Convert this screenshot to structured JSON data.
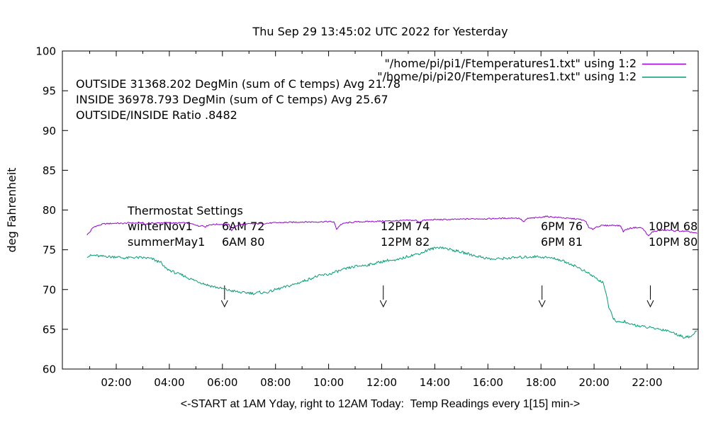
{
  "chart_data": {
    "type": "line",
    "title": "Thu Sep 29 13:45:02 UTC 2022 for Yesterday",
    "xlabel": "<-START at 1AM Yday, right to 12AM Today:  Temp Readings every 1[15] min->",
    "ylabel": "deg Fahrenheit",
    "grid": false,
    "legend_position": "top-right-inside",
    "x_axis": {
      "range_hours": [
        0,
        23.92
      ],
      "tick_hours": [
        2,
        4,
        6,
        8,
        10,
        12,
        14,
        16,
        18,
        20,
        22
      ],
      "tick_labels": [
        "02:00",
        "04:00",
        "06:00",
        "08:00",
        "10:00",
        "12:00",
        "14:00",
        "16:00",
        "18:00",
        "20:00",
        "22:00"
      ],
      "minor_tick_hours": [
        1,
        3,
        5,
        7,
        9,
        11,
        13,
        15,
        17,
        19,
        21,
        23
      ]
    },
    "y_axis": {
      "range": [
        60,
        100
      ],
      "ticks": [
        60,
        65,
        70,
        75,
        80,
        85,
        90,
        95,
        100
      ]
    },
    "arrows_at_hours": [
      6.08,
      12.06,
      18.04,
      22.12
    ],
    "series": [
      {
        "name": "\"/home/pi/pi1/Ftemperatures1.txt\" using 1:2",
        "color": "#9400d3",
        "points_t_hours_degF": [
          [
            0.9,
            76.9
          ],
          [
            1.0,
            77.2
          ],
          [
            1.1,
            77.7
          ],
          [
            1.2,
            77.95
          ],
          [
            1.35,
            78.05
          ],
          [
            1.5,
            78.25
          ],
          [
            1.75,
            78.3
          ],
          [
            2.0,
            78.35
          ],
          [
            2.25,
            78.3
          ],
          [
            2.5,
            78.4
          ],
          [
            2.75,
            78.35
          ],
          [
            3.0,
            78.4
          ],
          [
            3.1,
            78.15
          ],
          [
            3.2,
            78.35
          ],
          [
            3.5,
            78.35
          ],
          [
            3.75,
            78.4
          ],
          [
            4.0,
            78.4
          ],
          [
            4.25,
            78.35
          ],
          [
            4.5,
            78.4
          ],
          [
            4.75,
            78.3
          ],
          [
            5.0,
            78.15
          ],
          [
            5.1,
            77.95
          ],
          [
            5.2,
            78.1
          ],
          [
            5.35,
            77.9
          ],
          [
            5.5,
            78.15
          ],
          [
            5.75,
            78.2
          ],
          [
            6.0,
            78.2
          ],
          [
            6.25,
            78.15
          ],
          [
            6.35,
            77.4
          ],
          [
            6.45,
            77.9
          ],
          [
            6.6,
            78.1
          ],
          [
            6.75,
            78.2
          ],
          [
            7.0,
            78.25
          ],
          [
            7.5,
            78.3
          ],
          [
            8.0,
            78.4
          ],
          [
            8.5,
            78.45
          ],
          [
            9.0,
            78.5
          ],
          [
            9.5,
            78.5
          ],
          [
            10.0,
            78.55
          ],
          [
            10.2,
            78.5
          ],
          [
            10.3,
            77.6
          ],
          [
            10.45,
            78.15
          ],
          [
            10.6,
            78.35
          ],
          [
            11.0,
            78.5
          ],
          [
            11.5,
            78.55
          ],
          [
            12.0,
            78.6
          ],
          [
            12.5,
            78.65
          ],
          [
            13.0,
            78.7
          ],
          [
            13.3,
            78.7
          ],
          [
            13.4,
            78.45
          ],
          [
            13.55,
            78.7
          ],
          [
            14.0,
            78.8
          ],
          [
            14.5,
            78.8
          ],
          [
            15.0,
            78.85
          ],
          [
            15.5,
            78.9
          ],
          [
            16.0,
            78.9
          ],
          [
            16.5,
            78.95
          ],
          [
            17.0,
            79.0
          ],
          [
            17.2,
            78.95
          ],
          [
            17.35,
            78.5
          ],
          [
            17.5,
            78.95
          ],
          [
            17.75,
            79.0
          ],
          [
            18.0,
            79.1
          ],
          [
            18.2,
            79.2
          ],
          [
            18.5,
            79.1
          ],
          [
            18.75,
            79.05
          ],
          [
            19.0,
            78.95
          ],
          [
            19.25,
            78.9
          ],
          [
            19.5,
            78.8
          ],
          [
            19.7,
            78.55
          ],
          [
            19.8,
            77.75
          ],
          [
            19.95,
            77.6
          ],
          [
            20.1,
            77.9
          ],
          [
            20.3,
            78.05
          ],
          [
            20.5,
            78.05
          ],
          [
            20.75,
            78.1
          ],
          [
            21.0,
            78.0
          ],
          [
            21.1,
            77.3
          ],
          [
            21.2,
            77.55
          ],
          [
            21.4,
            77.75
          ],
          [
            21.6,
            77.8
          ],
          [
            21.8,
            77.75
          ],
          [
            21.95,
            77.2
          ],
          [
            22.05,
            76.7
          ],
          [
            22.2,
            77.25
          ],
          [
            22.4,
            77.4
          ],
          [
            22.6,
            77.45
          ],
          [
            22.8,
            77.45
          ],
          [
            23.0,
            77.4
          ],
          [
            23.25,
            77.35
          ],
          [
            23.5,
            77.3
          ],
          [
            23.7,
            77.2
          ],
          [
            23.88,
            77.05
          ]
        ]
      },
      {
        "name": "\"/home/pi/pi20/Ftemperatures1.txt\" using 1:2",
        "color": "#009e73",
        "points_t_hours_degF": [
          [
            0.9,
            74.2
          ],
          [
            1.2,
            74.3
          ],
          [
            1.4,
            74.15
          ],
          [
            1.6,
            74.2
          ],
          [
            1.8,
            74.1
          ],
          [
            2.0,
            74.15
          ],
          [
            2.2,
            74.0
          ],
          [
            2.4,
            73.95
          ],
          [
            2.6,
            74.05
          ],
          [
            2.8,
            74.0
          ],
          [
            3.0,
            74.0
          ],
          [
            3.2,
            73.95
          ],
          [
            3.4,
            73.8
          ],
          [
            3.55,
            73.5
          ],
          [
            3.65,
            73.6
          ],
          [
            3.75,
            73.0
          ],
          [
            3.9,
            72.6
          ],
          [
            4.1,
            72.3
          ],
          [
            4.3,
            72.0
          ],
          [
            4.5,
            71.8
          ],
          [
            4.75,
            71.4
          ],
          [
            5.0,
            71.1
          ],
          [
            5.25,
            70.8
          ],
          [
            5.5,
            70.5
          ],
          [
            5.75,
            70.3
          ],
          [
            6.0,
            70.1
          ],
          [
            6.25,
            69.9
          ],
          [
            6.5,
            69.75
          ],
          [
            6.75,
            69.6
          ],
          [
            7.0,
            69.6
          ],
          [
            7.2,
            69.5
          ],
          [
            7.4,
            69.65
          ],
          [
            7.6,
            69.6
          ],
          [
            7.8,
            69.75
          ],
          [
            8.0,
            70.0
          ],
          [
            8.25,
            70.2
          ],
          [
            8.5,
            70.45
          ],
          [
            8.75,
            70.7
          ],
          [
            9.0,
            71.0
          ],
          [
            9.25,
            71.3
          ],
          [
            9.5,
            71.6
          ],
          [
            9.75,
            71.8
          ],
          [
            10.0,
            71.9
          ],
          [
            10.25,
            72.2
          ],
          [
            10.5,
            72.45
          ],
          [
            10.75,
            72.7
          ],
          [
            11.0,
            72.9
          ],
          [
            11.25,
            73.0
          ],
          [
            11.5,
            73.1
          ],
          [
            11.75,
            73.3
          ],
          [
            12.0,
            73.5
          ],
          [
            12.25,
            73.7
          ],
          [
            12.5,
            73.6
          ],
          [
            12.75,
            73.9
          ],
          [
            13.0,
            74.2
          ],
          [
            13.25,
            74.4
          ],
          [
            13.5,
            74.6
          ],
          [
            13.75,
            75.0
          ],
          [
            14.0,
            75.2
          ],
          [
            14.2,
            75.35
          ],
          [
            14.5,
            75.1
          ],
          [
            14.75,
            74.9
          ],
          [
            15.0,
            74.7
          ],
          [
            15.25,
            74.5
          ],
          [
            15.5,
            74.25
          ],
          [
            15.75,
            74.1
          ],
          [
            16.0,
            73.9
          ],
          [
            16.2,
            73.8
          ],
          [
            16.5,
            73.9
          ],
          [
            17.0,
            74.0
          ],
          [
            17.5,
            74.1
          ],
          [
            17.8,
            74.15
          ],
          [
            18.0,
            74.1
          ],
          [
            18.3,
            74.0
          ],
          [
            18.6,
            73.85
          ],
          [
            18.9,
            73.5
          ],
          [
            19.2,
            73.1
          ],
          [
            19.5,
            72.6
          ],
          [
            19.8,
            72.0
          ],
          [
            20.0,
            71.6
          ],
          [
            20.2,
            71.1
          ],
          [
            20.35,
            70.9
          ],
          [
            20.45,
            69.5
          ],
          [
            20.55,
            67.8
          ],
          [
            20.7,
            66.5
          ],
          [
            20.85,
            66.0
          ],
          [
            21.0,
            65.8
          ],
          [
            21.15,
            66.0
          ],
          [
            21.3,
            65.6
          ],
          [
            21.5,
            65.6
          ],
          [
            21.7,
            65.4
          ],
          [
            21.9,
            65.3
          ],
          [
            22.1,
            65.2
          ],
          [
            22.3,
            65.1
          ],
          [
            22.5,
            65.0
          ],
          [
            22.7,
            64.9
          ],
          [
            22.9,
            64.7
          ],
          [
            23.0,
            64.5
          ],
          [
            23.2,
            64.3
          ],
          [
            23.35,
            64.0
          ],
          [
            23.5,
            64.15
          ],
          [
            23.6,
            63.95
          ],
          [
            23.75,
            64.4
          ],
          [
            23.88,
            64.8
          ]
        ]
      }
    ]
  },
  "annotations": {
    "stats": [
      "OUTSIDE 31368.202 DegMin (sum of C temps) Avg 21.78",
      "INSIDE 36978.793 DegMin (sum of C temps) Avg 25.67",
      "OUTSIDE/INSIDE Ratio .8482"
    ],
    "thermostat": {
      "title": "Thermostat Settings",
      "rows": [
        {
          "label": "winterNov1",
          "values": [
            "6AM 72",
            "12PM 74",
            "6PM 76",
            "10PM 68"
          ]
        },
        {
          "label": "summerMay1",
          "values": [
            "6AM 80",
            "12PM 82",
            "6PM 81",
            "10PM 80"
          ]
        }
      ]
    }
  }
}
